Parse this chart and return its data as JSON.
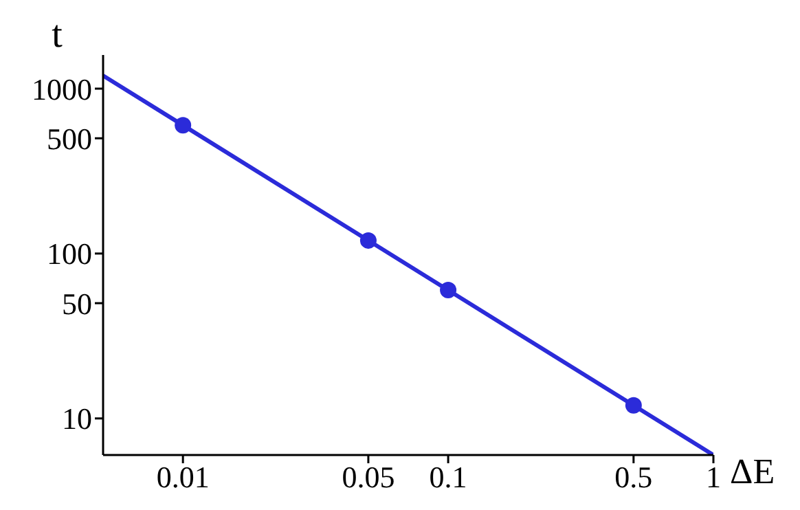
{
  "chart_data": {
    "type": "line",
    "xlabel": "ΔE",
    "ylabel": "t",
    "log": "xy",
    "xlim": [
      0.005,
      1
    ],
    "ylim": [
      6,
      1600
    ],
    "xticks": [
      0.01,
      0.05,
      0.1,
      0.5,
      1
    ],
    "yticks": [
      10,
      50,
      100,
      500,
      1000
    ],
    "series": [
      {
        "color": "#2b2bd9",
        "x": [
          0.005,
          1
        ],
        "values": [
          1200,
          6
        ]
      },
      {
        "type": "scatter",
        "color": "#2b2bd9",
        "x": [
          0.01,
          0.05,
          0.1,
          0.5
        ],
        "values": [
          600,
          120,
          60,
          12
        ]
      }
    ]
  }
}
